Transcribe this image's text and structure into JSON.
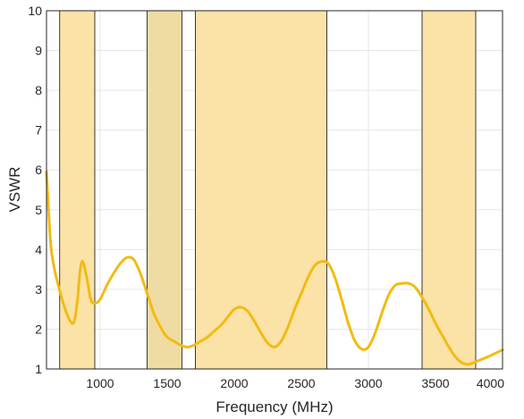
{
  "chart_data": {
    "type": "line",
    "title": "",
    "xlabel": "Frequency (MHz)",
    "ylabel": "VSWR",
    "xlim": [
      600,
      4000
    ],
    "ylim": [
      1,
      10
    ],
    "xticks": [
      1000,
      1500,
      2000,
      2500,
      3000,
      3500,
      4000
    ],
    "yticks": [
      1,
      2,
      3,
      4,
      5,
      6,
      7,
      8,
      9,
      10
    ],
    "grid": true,
    "legend": "none",
    "bands": [
      {
        "x": [
          698,
          960
        ],
        "color": "#fbe2a6"
      },
      {
        "x": [
          1350,
          1610
        ],
        "color": "#efdca3"
      },
      {
        "x": [
          1710,
          2690
        ],
        "color": "#fbe2a6"
      },
      {
        "x": [
          3400,
          3800
        ],
        "color": "#fbe2a6"
      }
    ],
    "series": [
      {
        "color": "#f2bb13",
        "x": [
          600,
          630,
          660,
          700,
          750,
          800,
          830,
          850,
          870,
          900,
          930,
          960,
          1000,
          1050,
          1100,
          1150,
          1200,
          1250,
          1300,
          1350,
          1400,
          1450,
          1500,
          1550,
          1600,
          1650,
          1700,
          1750,
          1800,
          1850,
          1900,
          1950,
          2000,
          2050,
          2100,
          2150,
          2200,
          2250,
          2300,
          2350,
          2400,
          2450,
          2500,
          2550,
          2600,
          2650,
          2700,
          2750,
          2800,
          2850,
          2900,
          2950,
          3000,
          3050,
          3100,
          3150,
          3200,
          3250,
          3300,
          3350,
          3400,
          3450,
          3500,
          3550,
          3600,
          3650,
          3700,
          3750,
          3800,
          3850,
          3900,
          3950,
          4000
        ],
        "y": [
          5.95,
          4.2,
          3.5,
          2.95,
          2.4,
          2.15,
          2.7,
          3.45,
          3.7,
          3.3,
          2.75,
          2.65,
          2.75,
          3.1,
          3.4,
          3.65,
          3.8,
          3.75,
          3.4,
          2.9,
          2.4,
          2.05,
          1.8,
          1.7,
          1.6,
          1.55,
          1.6,
          1.7,
          1.8,
          1.95,
          2.1,
          2.3,
          2.5,
          2.55,
          2.45,
          2.2,
          1.9,
          1.65,
          1.55,
          1.7,
          2.05,
          2.5,
          2.9,
          3.3,
          3.6,
          3.7,
          3.65,
          3.3,
          2.75,
          2.15,
          1.7,
          1.5,
          1.55,
          1.9,
          2.4,
          2.85,
          3.1,
          3.15,
          3.15,
          3.05,
          2.8,
          2.5,
          2.15,
          1.85,
          1.55,
          1.3,
          1.15,
          1.12,
          1.18,
          1.25,
          1.32,
          1.4,
          1.48
        ]
      }
    ]
  }
}
